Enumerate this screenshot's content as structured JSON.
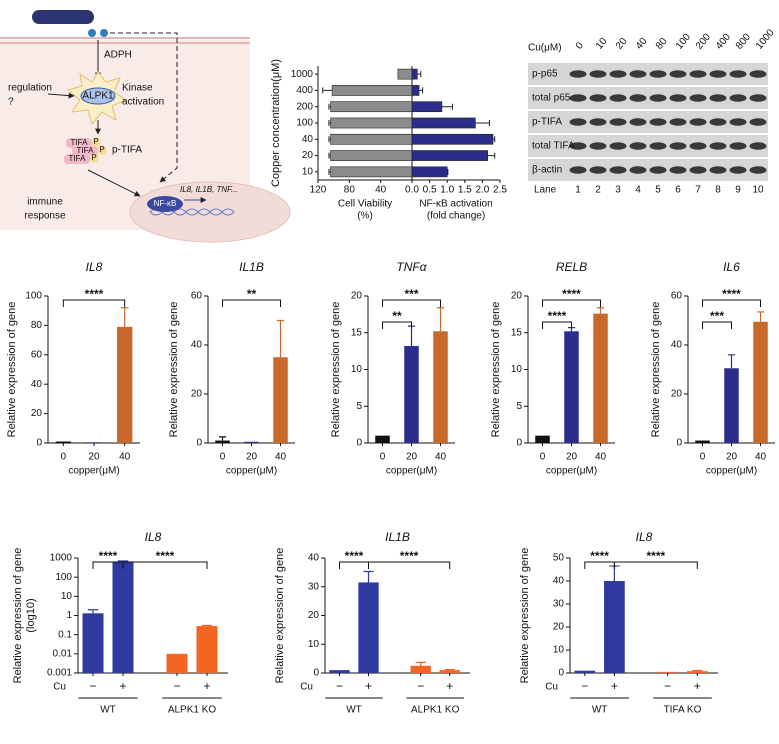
{
  "diagram": {
    "adph": "ADPH",
    "kinase": "ALPK1",
    "kinase_activation": [
      "Kinase",
      "activation"
    ],
    "regulation": [
      "regulation",
      "?"
    ],
    "tifa": "TIFA",
    "phospho": "P",
    "p_tifa": "p-TIFA",
    "immune_response": [
      "immune",
      "response"
    ],
    "nfkb": "NF-κB",
    "genes": "IL8, IL1B, TNF..."
  },
  "blot": {
    "header": "Cu(μM)",
    "concentrations": [
      "0",
      "10",
      "20",
      "40",
      "80",
      "100",
      "200",
      "400",
      "800",
      "1000"
    ],
    "rows": [
      "p-p65",
      "total p65",
      "p-TIFA",
      "total TIFA",
      "β-actin"
    ],
    "lane_label": "Lane",
    "lanes": [
      "1",
      "2",
      "3",
      "4",
      "5",
      "6",
      "7",
      "8",
      "9",
      "10"
    ]
  },
  "chart_data": [
    {
      "type": "butterfly-bar",
      "y_label": "Copper concentration(μM)",
      "categories": [
        "1000",
        "400",
        "200",
        "100",
        "40",
        "20",
        "10"
      ],
      "series": [
        {
          "x_label": [
            "Cell Viability",
            "(%)"
          ],
          "color": "#8c8c8c",
          "values": [
            18,
            102,
            104,
            104,
            104,
            104,
            104
          ],
          "errors": [
            0,
            12,
            2,
            2,
            2,
            2,
            2
          ],
          "xlim": [
            120,
            0
          ],
          "xticks": [
            120,
            80,
            40
          ]
        },
        {
          "x_label": [
            "NF-κB activation",
            "(fold change)"
          ],
          "color": "#2b2d8a",
          "values": [
            0.15,
            0.2,
            0.85,
            1.8,
            2.3,
            2.15,
            1.0
          ],
          "errors": [
            0.1,
            0.1,
            0.3,
            0.4,
            0.05,
            0.2,
            0.02
          ],
          "xlim": [
            0,
            2.5
          ],
          "xticks": [
            {
              "value": 0,
              "label": "0.0"
            },
            0.5,
            {
              "value": 1,
              "label": "1.0"
            },
            1.5,
            {
              "value": 2,
              "label": "2.0"
            },
            2.5
          ]
        }
      ]
    },
    {
      "type": "bar",
      "title": "IL8",
      "categories": [
        "0",
        "20",
        "40"
      ],
      "x_label": "copper(μM)",
      "y_label": "Relative expression of gene",
      "colors": [
        "#111111",
        "#2b2d8a",
        "#c8692a"
      ],
      "values": [
        1,
        0.5,
        79
      ],
      "errors": [
        0,
        0,
        13
      ],
      "ylim": [
        0,
        100
      ],
      "yticks": [
        0,
        20,
        40,
        60,
        80,
        100
      ],
      "significance": [
        {
          "between": [
            0,
            2
          ],
          "label": "****"
        }
      ]
    },
    {
      "type": "bar",
      "title": "IL1B",
      "categories": [
        "0",
        "20",
        "40"
      ],
      "x_label": "copper(μM)",
      "y_label": "Relative expression of gene",
      "colors": [
        "#111111",
        "#2b2d8a",
        "#c8692a"
      ],
      "values": [
        1,
        0.5,
        35
      ],
      "errors": [
        1.5,
        0,
        15
      ],
      "ylim": [
        0,
        60
      ],
      "yticks": [
        0,
        20,
        40,
        60
      ],
      "significance": [
        {
          "between": [
            0,
            2
          ],
          "label": "**"
        }
      ]
    },
    {
      "type": "bar",
      "title": "TNFα",
      "categories": [
        "0",
        "20",
        "40"
      ],
      "x_label": "copper(μM)",
      "y_label": "Relative expression of gene",
      "colors": [
        "#111111",
        "#2b2d8a",
        "#c8692a"
      ],
      "values": [
        1,
        13.2,
        15.2
      ],
      "errors": [
        0,
        2.7,
        3.2
      ],
      "ylim": [
        0,
        20
      ],
      "yticks": [
        0,
        5,
        10,
        15,
        20
      ],
      "significance": [
        {
          "between": [
            0,
            1
          ],
          "label": "**"
        },
        {
          "between": [
            0,
            2
          ],
          "label": "***"
        }
      ]
    },
    {
      "type": "bar",
      "title": "RELB",
      "categories": [
        "0",
        "20",
        "40"
      ],
      "x_label": "copper(μM)",
      "y_label": "Relative expression of gene",
      "colors": [
        "#111111",
        "#2b2d8a",
        "#c8692a"
      ],
      "values": [
        1,
        15.2,
        17.6
      ],
      "errors": [
        0,
        0.5,
        0.8
      ],
      "ylim": [
        0,
        20
      ],
      "yticks": [
        0,
        5,
        10,
        15,
        20
      ],
      "significance": [
        {
          "between": [
            0,
            1
          ],
          "label": "****"
        },
        {
          "between": [
            0,
            2
          ],
          "label": "****"
        }
      ]
    },
    {
      "type": "bar",
      "title": "IL6",
      "categories": [
        "0",
        "20",
        "40"
      ],
      "x_label": "copper(μM)",
      "y_label": "Relative expression of gene",
      "colors": [
        "#111111",
        "#2b2d8a",
        "#c8692a"
      ],
      "values": [
        1,
        30.5,
        49.5
      ],
      "errors": [
        0,
        5.5,
        4
      ],
      "ylim": [
        0,
        60
      ],
      "yticks": [
        0,
        20,
        40,
        60
      ],
      "significance": [
        {
          "between": [
            0,
            1
          ],
          "label": "***"
        },
        {
          "between": [
            0,
            2
          ],
          "label": "****"
        }
      ]
    },
    {
      "type": "grouped-bar",
      "title": "IL8",
      "log_scale": true,
      "x_label": "Cu",
      "categories": [
        "−",
        "+",
        "−",
        "+"
      ],
      "groups": [
        "WT",
        "ALPK1 KO"
      ],
      "y_label": [
        "Relative expression of gene",
        "(log10)"
      ],
      "colors": [
        "#2e3a9f",
        "#2e3a9f",
        "#f26522",
        "#f26522"
      ],
      "values": [
        1.3,
        650,
        0.01,
        0.28
      ],
      "errors": [
        0.7,
        50,
        0,
        0.02
      ],
      "ylim": [
        0.001,
        1000
      ],
      "yticks": [
        0.001,
        0.01,
        0.1,
        1,
        10,
        100,
        1000
      ],
      "significance": [
        {
          "between": [
            0,
            1
          ],
          "label": "****"
        },
        {
          "between": [
            1,
            3
          ],
          "label": "****"
        }
      ]
    },
    {
      "type": "grouped-bar",
      "title": "IL1B",
      "x_label": "Cu",
      "categories": [
        "−",
        "+",
        "−",
        "+"
      ],
      "groups": [
        "WT",
        "ALPK1 KO"
      ],
      "y_label": "Relative expression of gene",
      "colors": [
        "#2e3a9f",
        "#2e3a9f",
        "#f26522",
        "#f26522"
      ],
      "values": [
        1,
        31.5,
        2.5,
        1
      ],
      "errors": [
        0,
        3.8,
        1.2,
        0.2
      ],
      "ylim": [
        0,
        40
      ],
      "yticks": [
        0,
        10,
        20,
        30,
        40
      ],
      "significance": [
        {
          "between": [
            0,
            1
          ],
          "label": "****"
        },
        {
          "between": [
            1,
            3
          ],
          "label": "****"
        }
      ]
    },
    {
      "type": "grouped-bar",
      "title": "IL8",
      "x_label": "Cu",
      "categories": [
        "−",
        "+",
        "−",
        "+"
      ],
      "groups": [
        "WT",
        "TIFA KO"
      ],
      "y_label": "Relative expression of gene",
      "colors": [
        "#2e3a9f",
        "#2e3a9f",
        "#f26522",
        "#f26522"
      ],
      "values": [
        1,
        40,
        0.5,
        0.8
      ],
      "errors": [
        0,
        6.5,
        0,
        0.3
      ],
      "ylim": [
        0,
        50
      ],
      "yticks": [
        0,
        10,
        20,
        30,
        40,
        50
      ],
      "significance": [
        {
          "between": [
            0,
            1
          ],
          "label": "****"
        },
        {
          "between": [
            1,
            3
          ],
          "label": "****"
        }
      ]
    }
  ]
}
